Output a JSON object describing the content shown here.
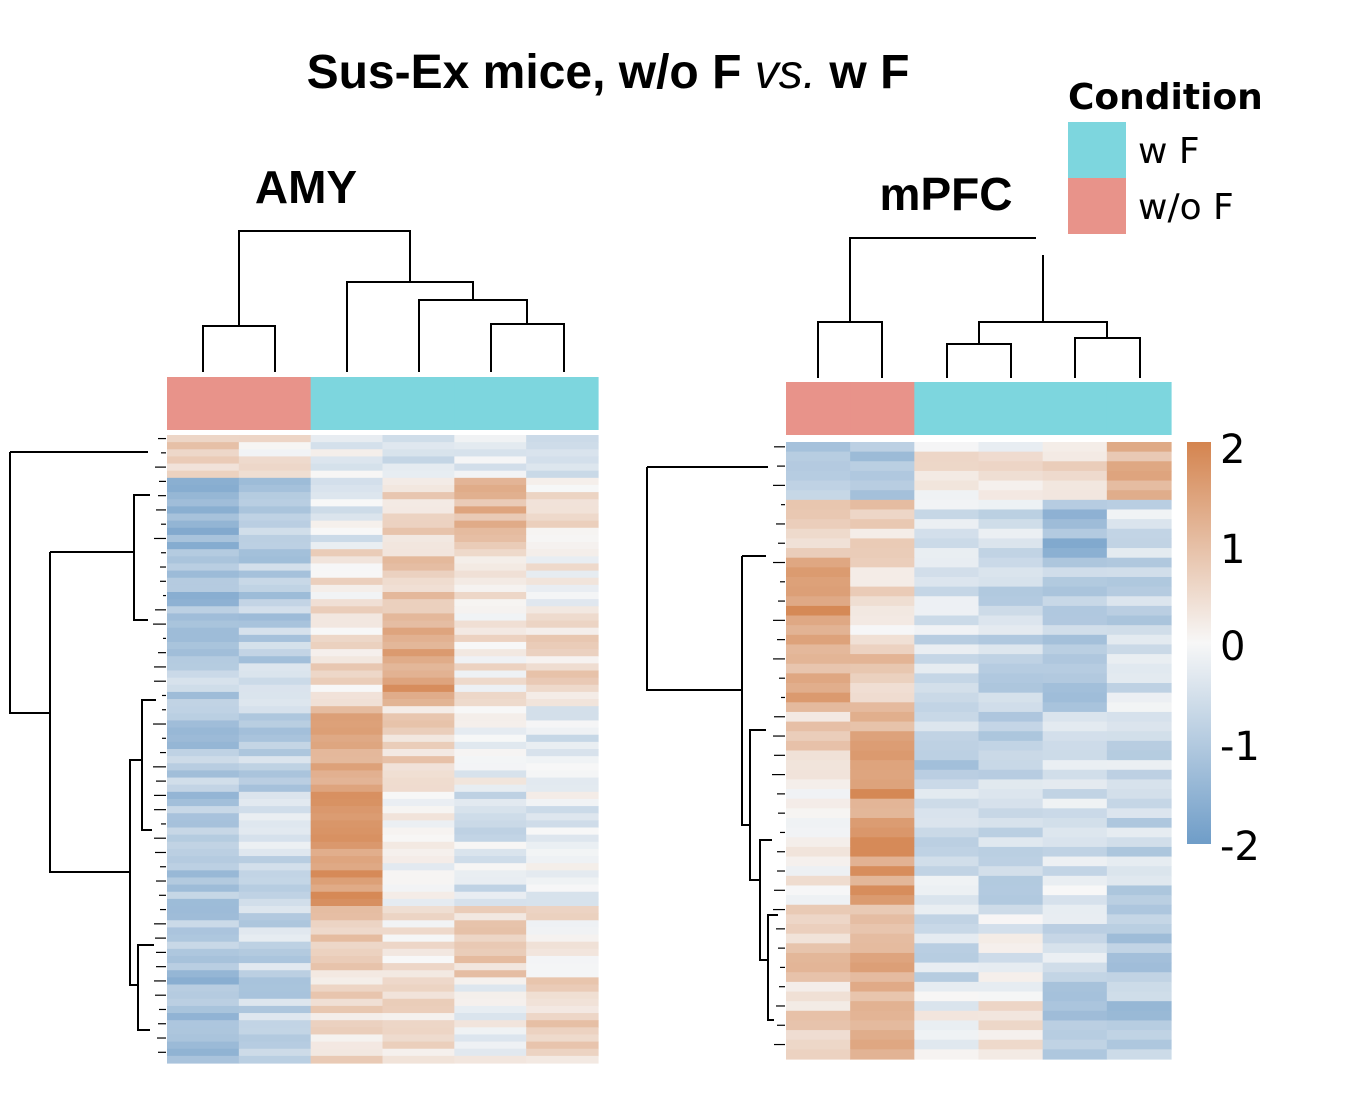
{
  "title": {
    "part1": "Sus-Ex mice, w/o F ",
    "italic": "vs.",
    "part2": " w F"
  },
  "legend": {
    "title": "Condition",
    "items": [
      {
        "label": "w F",
        "color": "#7dd6de"
      },
      {
        "label": "w/o F",
        "color": "#e8938a"
      }
    ]
  },
  "colorscale": {
    "min": -2,
    "max": 2,
    "low_color": "#6f9dc8",
    "mid_color": "#f7f7f7",
    "high_color": "#d4844f",
    "tick_labels": [
      "2",
      "1",
      "0",
      "-1",
      "-2"
    ]
  },
  "chart_data": [
    {
      "type": "heatmap",
      "title": "AMY",
      "columns": [
        "w/o F",
        "w/o F",
        "w F",
        "w F",
        "w F",
        "w F"
      ],
      "column_condition": [
        "w/o F",
        "w/o F",
        "w F",
        "w F",
        "w F",
        "w F"
      ],
      "row_clusters": [
        {
          "approx_rows": 6,
          "mean_values": [
            0.8,
            0.3,
            -0.2,
            -0.4,
            -0.3,
            -0.5
          ]
        },
        {
          "approx_rows": 10,
          "mean_values": [
            -1.3,
            -1.0,
            -0.3,
            0.6,
            1.0,
            0.4
          ]
        },
        {
          "approx_rows": 10,
          "mean_values": [
            -1.2,
            -0.9,
            0.3,
            0.7,
            0.2,
            0.1
          ]
        },
        {
          "approx_rows": 12,
          "mean_values": [
            -0.9,
            -0.8,
            0.4,
            1.4,
            0.2,
            0.5
          ]
        },
        {
          "approx_rows": 12,
          "mean_values": [
            -1.0,
            -0.8,
            1.1,
            0.6,
            -0.1,
            -0.3
          ]
        },
        {
          "approx_rows": 16,
          "mean_values": [
            -1.1,
            -0.6,
            1.6,
            0.0,
            -0.4,
            -0.2
          ]
        },
        {
          "approx_rows": 10,
          "mean_values": [
            -1.0,
            -0.7,
            0.6,
            0.2,
            0.7,
            0.3
          ]
        },
        {
          "approx_rows": 12,
          "mean_values": [
            -1.2,
            -0.8,
            0.5,
            0.5,
            0.0,
            0.6
          ]
        }
      ],
      "value_range": [
        -2,
        2
      ]
    },
    {
      "type": "heatmap",
      "title": "mPFC",
      "columns": [
        "w/o F",
        "w/o F",
        "w F",
        "w F",
        "w F",
        "w F"
      ],
      "column_condition": [
        "w/o F",
        "w/o F",
        "w F",
        "w F",
        "w F",
        "w F"
      ],
      "row_clusters": [
        {
          "approx_rows": 6,
          "mean_values": [
            -1.0,
            -0.9,
            0.3,
            0.2,
            0.6,
            1.2
          ]
        },
        {
          "approx_rows": 6,
          "mean_values": [
            0.8,
            0.6,
            -0.3,
            -0.5,
            -1.3,
            -0.5
          ]
        },
        {
          "approx_rows": 8,
          "mean_values": [
            1.5,
            0.4,
            -0.3,
            -0.6,
            -0.9,
            -0.7
          ]
        },
        {
          "approx_rows": 8,
          "mean_values": [
            1.2,
            0.8,
            -0.5,
            -0.8,
            -0.9,
            -0.5
          ]
        },
        {
          "approx_rows": 8,
          "mean_values": [
            0.6,
            1.3,
            -0.8,
            -0.7,
            -0.5,
            -0.6
          ]
        },
        {
          "approx_rows": 12,
          "mean_values": [
            0.2,
            1.5,
            -0.5,
            -0.6,
            -0.4,
            -0.7
          ]
        },
        {
          "approx_rows": 8,
          "mean_values": [
            0.7,
            1.1,
            -0.6,
            -0.2,
            -0.6,
            -1.0
          ]
        },
        {
          "approx_rows": 8,
          "mean_values": [
            0.6,
            1.0,
            0.0,
            0.2,
            -1.0,
            -1.0
          ]
        }
      ],
      "value_range": [
        -2,
        2
      ]
    }
  ]
}
